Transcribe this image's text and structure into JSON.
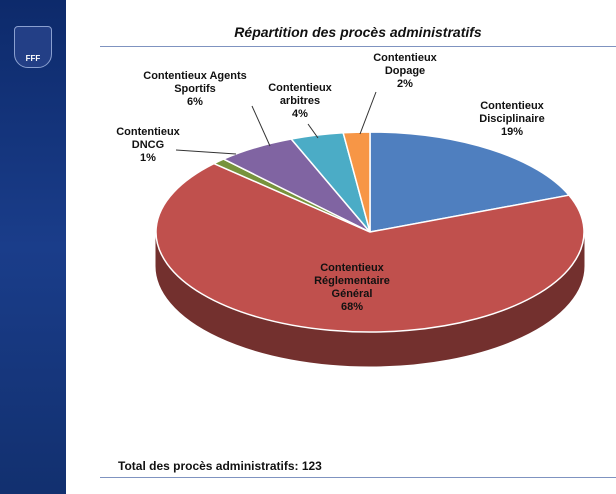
{
  "logo": "FFF",
  "chart_data": {
    "type": "pie",
    "title": "Répartition des procès administratifs",
    "footer": "Total des procès administratifs: 123",
    "categories": [
      "Contentieux Disciplinaire",
      "Contentieux Réglementaire Général",
      "Contentieux DNCG",
      "Contentieux Agents Sportifs",
      "Contentieux arbitres",
      "Contentieux Dopage"
    ],
    "values": [
      19,
      68,
      1,
      6,
      4,
      2
    ],
    "value_labels": [
      "19%",
      "68%",
      "1%",
      "6%",
      "4%",
      "2%"
    ],
    "colors": [
      "#4f7fbf",
      "#c0504d",
      "#77933c",
      "#8064a2",
      "#4bacc6",
      "#f79646"
    ]
  }
}
